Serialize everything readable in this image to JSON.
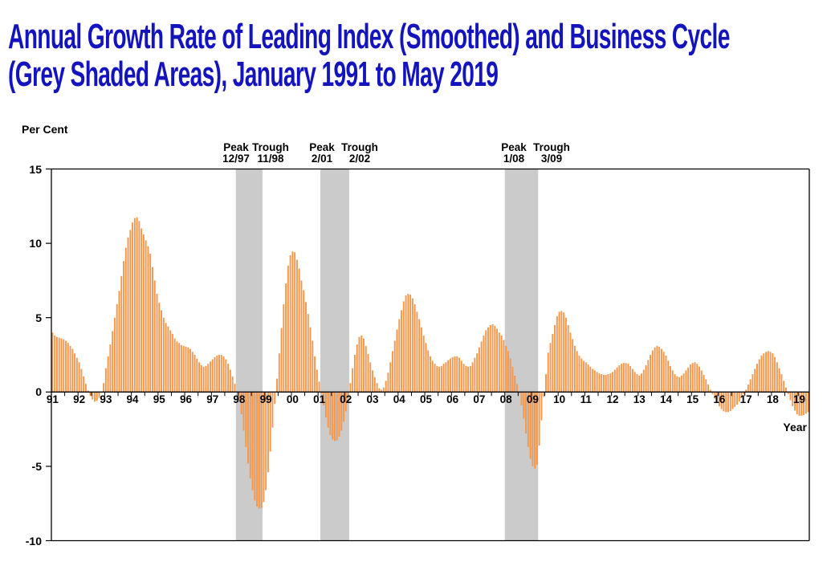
{
  "title": {
    "line1": "Annual Growth Rate of Leading Index (Smoothed) and Business Cycle",
    "line2": "(Grey Shaded Areas), January 1991 to May 2019"
  },
  "y_axis": {
    "label": "Per Cent",
    "ticks": [
      15,
      10,
      5,
      0,
      -5,
      -10
    ]
  },
  "x_axis": {
    "label": "Year",
    "year_labels": [
      "91",
      "92",
      "93",
      "94",
      "95",
      "96",
      "97",
      "98",
      "99",
      "00",
      "01",
      "02",
      "03",
      "04",
      "05",
      "06",
      "07",
      "08",
      "09",
      "10",
      "11",
      "12",
      "13",
      "14",
      "15",
      "16",
      "17",
      "18",
      "19"
    ]
  },
  "annotations": [
    {
      "peak_label": "Peak",
      "peak_date": "12/97",
      "peak_x": 294,
      "trough_label": "Trough",
      "trough_date": "11/98",
      "trough_x": 337
    },
    {
      "peak_label": "Peak",
      "peak_date": "2/01",
      "peak_x": 401,
      "trough_label": "Trough",
      "trough_date": "2/02",
      "trough_x": 448
    },
    {
      "peak_label": "Peak",
      "peak_date": "1/08",
      "peak_x": 640,
      "trough_label": "Trough",
      "trough_date": "3/09",
      "trough_x": 687
    }
  ],
  "recession_bands": [
    {
      "label": "12/97 - 11/98",
      "start_month": 83,
      "end_month": 94
    },
    {
      "label": "2/01 - 2/02",
      "start_month": 121,
      "end_month": 133
    },
    {
      "label": "1/08 - 3/09",
      "start_month": 204,
      "end_month": 218
    }
  ],
  "colors": {
    "bar": "#F5964A",
    "band": "#CBCBCB",
    "axis": "#000000",
    "title": "#1414BE",
    "text": "#000000"
  },
  "chart_data": {
    "type": "bar",
    "title": "Annual Growth Rate of Leading Index (Smoothed) and Business Cycle (Grey Shaded Areas), January 1991 to May 2019",
    "xlabel": "Year",
    "ylabel": "Per Cent",
    "ylim": [
      -10,
      15
    ],
    "grid": false,
    "legend": "none",
    "frequency": "monthly",
    "start": "1991-01",
    "end": "2019-05",
    "values": [
      4.0,
      3.8,
      3.7,
      3.65,
      3.6,
      3.55,
      3.45,
      3.3,
      3.1,
      2.9,
      2.6,
      2.3,
      2.0,
      1.55,
      1.05,
      0.55,
      0.1,
      -0.25,
      -0.5,
      -0.65,
      -0.6,
      -0.4,
      -0.05,
      0.6,
      1.6,
      2.4,
      3.2,
      4.1,
      5.0,
      5.9,
      6.8,
      7.8,
      8.8,
      9.7,
      10.4,
      10.9,
      11.4,
      11.7,
      11.75,
      11.5,
      11.0,
      10.6,
      10.2,
      9.8,
      9.3,
      8.4,
      7.5,
      6.6,
      6.0,
      5.5,
      5.0,
      4.65,
      4.4,
      4.15,
      3.9,
      3.6,
      3.4,
      3.3,
      3.15,
      3.1,
      3.05,
      3.0,
      2.9,
      2.7,
      2.5,
      2.25,
      2.0,
      1.8,
      1.7,
      1.75,
      1.9,
      2.05,
      2.2,
      2.35,
      2.45,
      2.5,
      2.5,
      2.4,
      2.2,
      1.9,
      1.5,
      1.05,
      0.55,
      0.05,
      -0.5,
      -1.5,
      -2.6,
      -3.7,
      -4.8,
      -5.8,
      -6.6,
      -7.3,
      -7.7,
      -7.85,
      -7.8,
      -7.4,
      -6.6,
      -5.4,
      -4.0,
      -2.4,
      -0.8,
      0.9,
      2.6,
      4.3,
      5.9,
      7.3,
      8.5,
      9.2,
      9.45,
      9.4,
      8.9,
      8.3,
      7.5,
      6.85,
      6.05,
      5.25,
      4.35,
      3.45,
      2.4,
      1.5,
      0.7,
      -0.1,
      -0.9,
      -1.7,
      -2.4,
      -2.9,
      -3.2,
      -3.3,
      -3.25,
      -3.0,
      -2.6,
      -2.0,
      -1.3,
      -0.4,
      0.6,
      1.6,
      2.5,
      3.2,
      3.7,
      3.8,
      3.6,
      3.1,
      2.55,
      2.0,
      1.45,
      1.0,
      0.6,
      0.25,
      0.15,
      0.3,
      0.75,
      1.3,
      2.0,
      2.75,
      3.45,
      4.2,
      4.9,
      5.5,
      6.1,
      6.5,
      6.6,
      6.55,
      6.3,
      5.9,
      5.4,
      4.9,
      4.35,
      3.8,
      3.3,
      2.8,
      2.4,
      2.1,
      1.9,
      1.75,
      1.7,
      1.75,
      1.9,
      2.0,
      2.15,
      2.25,
      2.35,
      2.4,
      2.4,
      2.3,
      2.1,
      1.9,
      1.75,
      1.7,
      1.75,
      2.0,
      2.3,
      2.6,
      3.0,
      3.4,
      3.8,
      4.15,
      4.35,
      4.5,
      4.55,
      4.45,
      4.25,
      4.0,
      3.8,
      3.5,
      3.1,
      2.75,
      2.25,
      1.7,
      1.1,
      0.55,
      -0.1,
      -0.9,
      -1.8,
      -2.8,
      -3.7,
      -4.5,
      -5.0,
      -5.15,
      -4.9,
      -3.6,
      -1.9,
      -0.3,
      1.2,
      2.65,
      3.3,
      3.9,
      4.5,
      5.1,
      5.4,
      5.45,
      5.35,
      5.0,
      4.5,
      4.0,
      3.55,
      3.1,
      2.75,
      2.45,
      2.25,
      2.1,
      2.0,
      1.85,
      1.7,
      1.55,
      1.45,
      1.35,
      1.25,
      1.2,
      1.15,
      1.15,
      1.2,
      1.25,
      1.35,
      1.5,
      1.65,
      1.8,
      1.9,
      1.95,
      1.95,
      1.9,
      1.75,
      1.55,
      1.35,
      1.2,
      1.1,
      1.25,
      1.5,
      1.8,
      2.15,
      2.5,
      2.8,
      3.0,
      3.1,
      3.05,
      2.9,
      2.7,
      2.45,
      2.1,
      1.75,
      1.45,
      1.2,
      1.05,
      1.0,
      1.1,
      1.25,
      1.45,
      1.65,
      1.85,
      1.95,
      2.0,
      1.9,
      1.7,
      1.45,
      1.15,
      0.85,
      0.5,
      0.15,
      -0.15,
      -0.45,
      -0.7,
      -0.95,
      -1.15,
      -1.3,
      -1.35,
      -1.35,
      -1.28,
      -1.15,
      -1.0,
      -0.85,
      -0.65,
      -0.4,
      -0.15,
      0.15,
      0.5,
      0.85,
      1.2,
      1.55,
      1.9,
      2.2,
      2.45,
      2.6,
      2.7,
      2.75,
      2.7,
      2.6,
      2.35,
      2.0,
      1.6,
      1.2,
      0.75,
      0.3,
      -0.15,
      -0.55,
      -0.95,
      -1.25,
      -1.5,
      -1.6,
      -1.6,
      -1.55,
      -1.45,
      -1.35
    ]
  }
}
